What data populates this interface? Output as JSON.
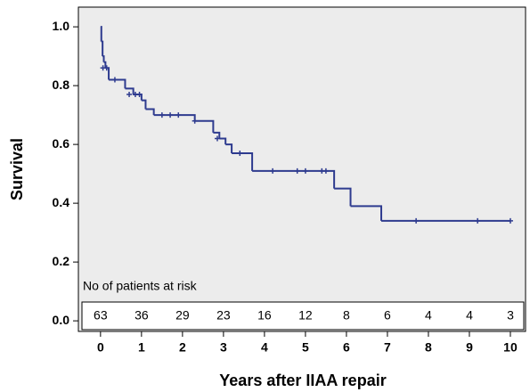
{
  "chart_data": {
    "type": "step",
    "y_label": "Survival",
    "x_label": "Years after IIAA repair",
    "x": [
      0,
      0.02,
      0.05,
      0.08,
      0.12,
      0.2,
      0.6,
      0.8,
      1.0,
      1.1,
      1.3,
      2.3,
      2.75,
      2.9,
      3.05,
      3.2,
      3.7,
      5.7,
      6.1,
      6.85,
      10
    ],
    "values": [
      1.0,
      0.95,
      0.9,
      0.88,
      0.86,
      0.82,
      0.79,
      0.77,
      0.75,
      0.72,
      0.7,
      0.68,
      0.64,
      0.62,
      0.6,
      0.57,
      0.51,
      0.45,
      0.39,
      0.34,
      0.34
    ],
    "color": "#2e3b8f",
    "censor_x": [
      0.06,
      0.15,
      0.35,
      0.7,
      0.85,
      0.95,
      1.5,
      1.7,
      1.9,
      2.3,
      2.85,
      3.4,
      4.2,
      4.8,
      5.0,
      5.4,
      5.5,
      7.7,
      9.2,
      10
    ],
    "censor_values": [
      0.86,
      0.86,
      0.82,
      0.77,
      0.77,
      0.77,
      0.7,
      0.7,
      0.7,
      0.68,
      0.62,
      0.57,
      0.51,
      0.51,
      0.51,
      0.51,
      0.51,
      0.34,
      0.34,
      0.34
    ],
    "xlim": [
      -0.54,
      10.37
    ],
    "ylim": [
      -0.036,
      1.067
    ],
    "xticks": [
      0,
      1,
      2,
      3,
      4,
      5,
      6,
      7,
      8,
      9,
      10
    ],
    "yticks": [
      {
        "value": 0,
        "label": "0.0"
      },
      {
        "value": 0.2,
        "label": "0.2"
      },
      {
        "value": 0.4,
        "label": "0.4"
      },
      {
        "value": 0.6,
        "label": "0.6"
      },
      {
        "value": 0.8,
        "label": "0.8"
      },
      {
        "value": 1,
        "label": "1.0"
      }
    ],
    "at_risk": {
      "label": "No of patients at risk",
      "values": [
        63,
        36,
        29,
        23,
        16,
        12,
        8,
        6,
        4,
        4,
        3
      ]
    }
  }
}
